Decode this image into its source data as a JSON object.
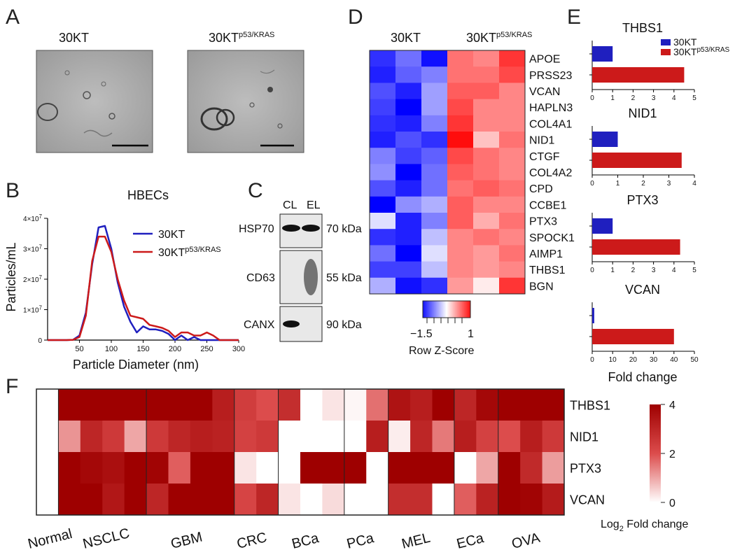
{
  "panels": {
    "A": "A",
    "B": "B",
    "C": "C",
    "D": "D",
    "E": "E",
    "F": "F"
  },
  "panel_a": {
    "label_30kt": "30KT",
    "label_mut_base": "30KT",
    "label_mut_sup": "p53/KRAS"
  },
  "colors": {
    "blue": "#1f1fbf",
    "red": "#cc1a1a",
    "dark_red": "#9e0000"
  },
  "chart_data": [
    {
      "id": "B",
      "type": "line",
      "title": "HBECs",
      "xlabel": "Particle Diameter (nm)",
      "ylabel": "Particles/mL",
      "xlim": [
        0,
        300
      ],
      "ylim": [
        0,
        40000000
      ],
      "x_ticks": [
        "50",
        "100",
        "150",
        "200",
        "250",
        "300"
      ],
      "y_ticks": [
        "0",
        "1×10^7",
        "2×10^7",
        "3×10^7",
        "4×10^7"
      ],
      "legend_position": "top-right",
      "series": [
        {
          "name": "30KT",
          "name_sup": "",
          "color": "#1f1fbf",
          "x": [
            0,
            10,
            20,
            30,
            40,
            50,
            60,
            70,
            80,
            90,
            100,
            110,
            120,
            130,
            140,
            150,
            160,
            170,
            180,
            190,
            200,
            210,
            220,
            230,
            240,
            250,
            260,
            270,
            280,
            290,
            300
          ],
          "y": [
            0,
            0,
            0,
            0,
            100000,
            1500000,
            9000000,
            25000000,
            37000000,
            37500000,
            30000000,
            19000000,
            11000000,
            6000000,
            2500000,
            4500000,
            3500000,
            3500000,
            3000000,
            2000000,
            0,
            1500000,
            0,
            1000000,
            0,
            0,
            0,
            0,
            0,
            0,
            0
          ]
        },
        {
          "name": "30KT",
          "name_sup": "p53/KRAS",
          "color": "#cc1a1a",
          "x": [
            0,
            10,
            20,
            30,
            40,
            50,
            60,
            70,
            80,
            90,
            100,
            110,
            120,
            130,
            140,
            150,
            160,
            170,
            180,
            190,
            200,
            210,
            220,
            230,
            240,
            250,
            260,
            270,
            280,
            290,
            300
          ],
          "y": [
            0,
            0,
            0,
            0,
            100000,
            1000000,
            8000000,
            26000000,
            34000000,
            34000000,
            29000000,
            20000000,
            13000000,
            8000000,
            7500000,
            7000000,
            5000000,
            4500000,
            4000000,
            3000000,
            1000000,
            2500000,
            2500000,
            1500000,
            1500000,
            2500000,
            1500000,
            0,
            0,
            0,
            0
          ]
        }
      ]
    },
    {
      "id": "D",
      "type": "heatmap",
      "col_groups": [
        {
          "label": "30KT",
          "sup": ""
        },
        {
          "label": "30KT",
          "sup": "p53/KRAS"
        }
      ],
      "rows": [
        "APOE",
        "PRSS23",
        "VCAN",
        "HAPLN3",
        "COL4A1",
        "NID1",
        "CTGF",
        "COL4A2",
        "CPD",
        "CCBE1",
        "PTX3",
        "SPOCK1",
        "AIMP1",
        "THBS1",
        "BGN"
      ],
      "values": [
        [
          -1.3,
          -0.9,
          -1.5,
          0.7,
          0.6,
          1.0
        ],
        [
          -1.4,
          -1.0,
          -0.8,
          0.7,
          0.7,
          0.9
        ],
        [
          -1.1,
          -1.4,
          -0.6,
          0.8,
          0.8,
          0.6
        ],
        [
          -1.2,
          -1.6,
          -0.6,
          0.9,
          0.6,
          0.6
        ],
        [
          -1.3,
          -1.4,
          -0.8,
          1.0,
          0.6,
          0.6
        ],
        [
          -1.4,
          -1.1,
          -1.3,
          1.2,
          0.3,
          0.7
        ],
        [
          -0.8,
          -1.2,
          -1.0,
          0.9,
          0.7,
          0.6
        ],
        [
          -0.7,
          -1.6,
          -0.9,
          0.8,
          0.7,
          0.6
        ],
        [
          -1.1,
          -1.4,
          -0.9,
          0.7,
          0.8,
          0.7
        ],
        [
          -1.8,
          -0.7,
          -0.5,
          0.8,
          0.6,
          0.6
        ],
        [
          -0.2,
          -1.4,
          -0.8,
          0.8,
          0.4,
          0.7
        ],
        [
          -1.3,
          -1.4,
          -0.4,
          0.6,
          0.7,
          0.6
        ],
        [
          -0.9,
          -1.7,
          -0.2,
          0.6,
          0.5,
          0.7
        ],
        [
          -1.2,
          -1.2,
          -0.4,
          0.6,
          0.5,
          0.6
        ],
        [
          -0.5,
          -1.5,
          -1.3,
          0.5,
          0.1,
          1.0
        ]
      ],
      "colorbar": {
        "label": "Row Z-Score",
        "ticks": [
          "−1.5",
          "1"
        ]
      }
    },
    {
      "id": "E",
      "type": "bar",
      "xlabel": "Fold change",
      "legend": [
        {
          "name": "30KT",
          "sup": "",
          "color": "#1f1fbf"
        },
        {
          "name": "30KT",
          "sup": "p53/KRAS",
          "color": "#cc1a1a"
        }
      ],
      "subplots": [
        {
          "title": "THBS1",
          "values": [
            1,
            4.5
          ],
          "xlim": [
            0,
            5
          ],
          "ticks": [
            "0",
            "1",
            "2",
            "3",
            "4",
            "5"
          ]
        },
        {
          "title": "NID1",
          "values": [
            1,
            3.5
          ],
          "xlim": [
            0,
            4
          ],
          "ticks": [
            "0",
            "1",
            "2",
            "3",
            "4"
          ]
        },
        {
          "title": "PTX3",
          "values": [
            1,
            4.3
          ],
          "xlim": [
            0,
            5
          ],
          "ticks": [
            "0",
            "1",
            "2",
            "3",
            "4",
            "5"
          ]
        },
        {
          "title": "VCAN",
          "values": [
            1,
            40
          ],
          "xlim": [
            0,
            50
          ],
          "ticks": [
            "0",
            "10",
            "20",
            "30",
            "40",
            "50"
          ]
        }
      ]
    },
    {
      "id": "F",
      "type": "heatmap",
      "rows": [
        "THBS1",
        "NID1",
        "PTX3",
        "VCAN"
      ],
      "groups": [
        {
          "label": "Normal",
          "n": 1
        },
        {
          "label": "NSCLC",
          "n": 4
        },
        {
          "label": "GBM",
          "n": 4
        },
        {
          "label": "CRC",
          "n": 2
        },
        {
          "label": "BCa",
          "n": 3
        },
        {
          "label": "PCa",
          "n": 2
        },
        {
          "label": "MEL",
          "n": 3
        },
        {
          "label": "ECa",
          "n": 2
        },
        {
          "label": "OVA",
          "n": 3
        }
      ],
      "values": [
        [
          0,
          4,
          4,
          4,
          4,
          4,
          4,
          4,
          3.2,
          2.4,
          2.0,
          2.8,
          0,
          0.3,
          0.1,
          1.6,
          3.5,
          3.2,
          4,
          3.0,
          3.8,
          4,
          4,
          4
        ],
        [
          0,
          1.2,
          3.0,
          2.5,
          1.0,
          2.5,
          3.0,
          3.2,
          3.1,
          2.3,
          2.5,
          0,
          0,
          0,
          0,
          3.2,
          0.2,
          3.0,
          1.5,
          3.2,
          2.3,
          2.0,
          3.2,
          2.5
        ],
        [
          0,
          4,
          3.8,
          3.6,
          4,
          3.9,
          1.8,
          4,
          4,
          0.3,
          0,
          0,
          4,
          4,
          4,
          0,
          4,
          4,
          4,
          0,
          1.0,
          4,
          2.9,
          1.1
        ],
        [
          0,
          4,
          4,
          3.4,
          4,
          3.0,
          4,
          4,
          4,
          2.2,
          3.0,
          0.3,
          0,
          0.4,
          0,
          0,
          2.8,
          2.8,
          0,
          1.8,
          3.1,
          4,
          3.9,
          3.3
        ]
      ],
      "colorbar": {
        "label": "Log",
        "label_sub": "2",
        "label_rest": " Fold change",
        "ticks": [
          "4",
          "2",
          "0"
        ]
      }
    }
  ],
  "panel_c": {
    "headers": [
      "CL",
      "EL"
    ],
    "rows": [
      {
        "label": "HSP70",
        "kda": "70 kDa"
      },
      {
        "label": "CD63",
        "kda": "55 kDa"
      },
      {
        "label": "CANX",
        "kda": "90 kDa"
      }
    ]
  }
}
